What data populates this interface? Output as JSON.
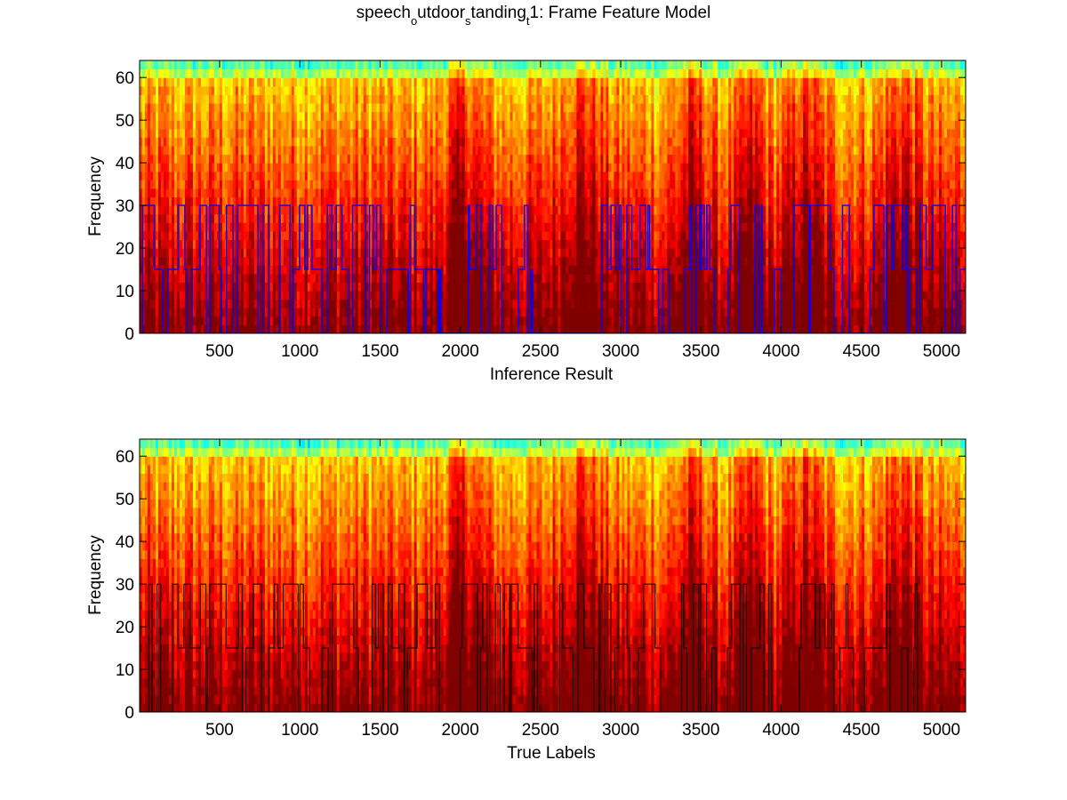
{
  "figure": {
    "title_parts": [
      {
        "text": "speech",
        "sub": false
      },
      {
        "text": "o",
        "sub": true
      },
      {
        "text": "utdoor",
        "sub": false
      },
      {
        "text": "s",
        "sub": true
      },
      {
        "text": "tanding",
        "sub": false
      },
      {
        "text": "t",
        "sub": true
      },
      {
        "text": "1: Frame Feature Model",
        "sub": false
      }
    ]
  },
  "chart_data": [
    {
      "type": "heatmap",
      "overlay": "line",
      "xlabel": "Inference Result",
      "ylabel": "Frequency",
      "xlim": [
        1,
        5150
      ],
      "ylim": [
        0,
        64
      ],
      "xticks": [
        500,
        1000,
        1500,
        2000,
        2500,
        3000,
        3500,
        4000,
        4500,
        5000
      ],
      "yticks": [
        0,
        10,
        20,
        30,
        40,
        50,
        60
      ],
      "colormap": "jet",
      "grid": false,
      "line_color": "#0000ff",
      "label_levels": [
        0,
        15,
        30
      ],
      "label_segments": [
        {
          "x0": 1,
          "x1": 1880,
          "value": 30
        },
        {
          "x0": 2050,
          "x1": 2450,
          "value": 30
        },
        {
          "x0": 2880,
          "x1": 3300,
          "value": 30
        },
        {
          "x0": 3400,
          "x1": 3740,
          "value": 30
        },
        {
          "x0": 3780,
          "x1": 3880,
          "value": 30
        },
        {
          "x0": 3960,
          "x1": 5150,
          "value": 30
        }
      ]
    },
    {
      "type": "heatmap",
      "overlay": "line",
      "xlabel": "True Labels",
      "ylabel": "Frequency",
      "xlim": [
        1,
        5150
      ],
      "ylim": [
        0,
        64
      ],
      "xticks": [
        500,
        1000,
        1500,
        2000,
        2500,
        3000,
        3500,
        4000,
        4500,
        5000
      ],
      "yticks": [
        0,
        10,
        20,
        30,
        40,
        50,
        60
      ],
      "colormap": "jet",
      "grid": false,
      "line_color": "#000000",
      "label_levels": [
        0,
        15,
        30
      ],
      "label_segments": [
        {
          "x0": 60,
          "x1": 1870,
          "value": 30
        },
        {
          "x0": 2000,
          "x1": 2480,
          "value": 30
        },
        {
          "x0": 2620,
          "x1": 3250,
          "value": 30
        },
        {
          "x0": 3380,
          "x1": 3940,
          "value": 30
        },
        {
          "x0": 4080,
          "x1": 4850,
          "value": 30
        }
      ]
    }
  ]
}
